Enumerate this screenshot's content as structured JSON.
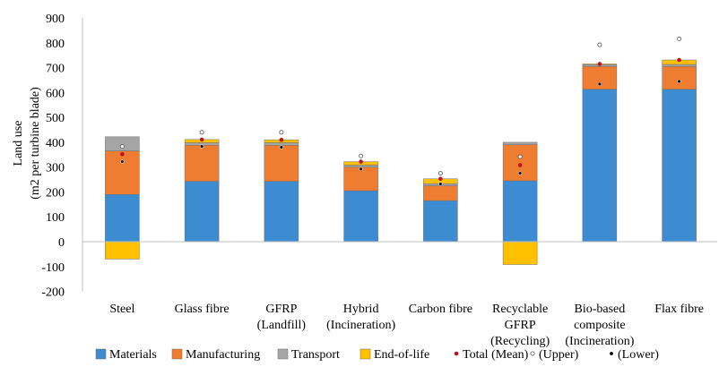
{
  "chart_data": {
    "type": "bar",
    "stacked": true,
    "ylabel": [
      "Land use",
      "(m2 per turbine blade)"
    ],
    "ylim": [
      -200,
      900
    ],
    "yticks": [
      900,
      800,
      700,
      600,
      500,
      400,
      300,
      200,
      100,
      0,
      -100,
      -200
    ],
    "grid": false,
    "legend_position": "bottom",
    "categories": [
      [
        "Steel"
      ],
      [
        "Glass fibre"
      ],
      [
        "GFRP",
        "(Landfill)"
      ],
      [
        "Hybrid",
        "(Incineration)"
      ],
      [
        "Carbon fibre"
      ],
      [
        "Recyclable",
        "GFRP",
        "(Recycling)"
      ],
      [
        "Bio-based",
        "composite",
        "(Incineration)"
      ],
      [
        "Flax fibre"
      ]
    ],
    "series": [
      {
        "name": "Materials",
        "color": "#3d8bd0",
        "values": [
          190,
          243,
          243,
          205,
          165,
          245,
          613,
          613
        ]
      },
      {
        "name": "Manufacturing",
        "color": "#ee7d31",
        "values": [
          175,
          145,
          145,
          95,
          60,
          145,
          92,
          92
        ]
      },
      {
        "name": "Transport",
        "color": "#a5a5a5",
        "values": [
          57,
          10,
          10,
          8,
          8,
          10,
          7,
          8
        ]
      },
      {
        "name": "End-of-life",
        "color": "#ffc000",
        "values": [
          -70,
          13,
          12,
          14,
          20,
          -92,
          3,
          18
        ]
      }
    ],
    "markers": [
      {
        "name": "Total (Mean)",
        "kind": "mean",
        "color": "#c0121f",
        "values": [
          352,
          411,
          410,
          322,
          253,
          308,
          715,
          731
        ]
      },
      {
        "name": "(Upper)",
        "kind": "upper",
        "color": "#ffffff",
        "values": [
          383,
          440,
          440,
          345,
          275,
          342,
          792,
          816
        ]
      },
      {
        "name": "(Lower)",
        "kind": "lower",
        "color": "#000000",
        "values": [
          322,
          383,
          380,
          292,
          232,
          275,
          634,
          645
        ]
      }
    ]
  }
}
